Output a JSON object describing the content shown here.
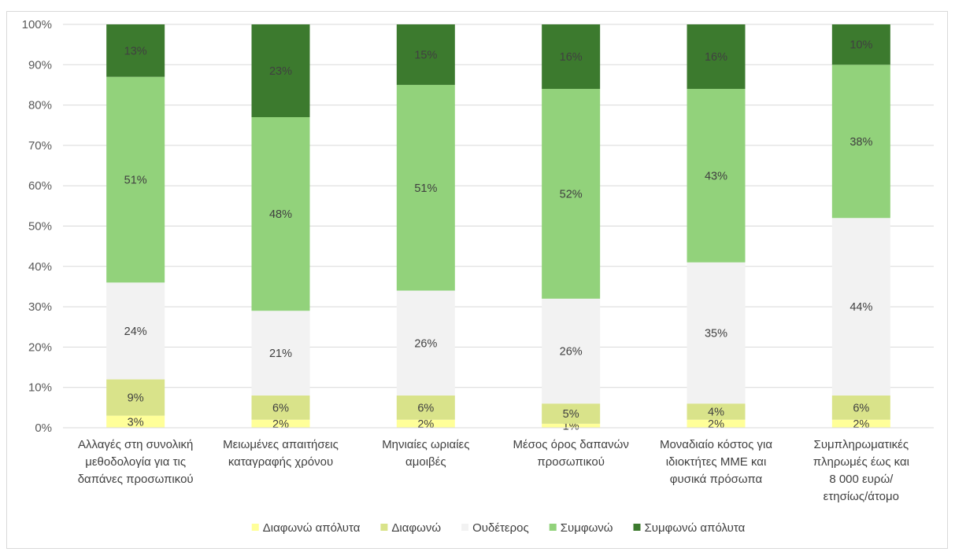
{
  "chart_data": {
    "type": "bar",
    "stacked": true,
    "percent_stacked": true,
    "title": "",
    "xlabel": "",
    "ylabel": "",
    "ylim": [
      0,
      100
    ],
    "yticks": [
      "0%",
      "10%",
      "20%",
      "30%",
      "40%",
      "50%",
      "60%",
      "70%",
      "80%",
      "90%",
      "100%"
    ],
    "grid": true,
    "legend_position": "bottom",
    "categories": [
      [
        "Αλλαγές στη συνολική",
        "μεθοδολογία για τις",
        "δαπάνες προσωπικού"
      ],
      [
        "Μειωμένες απαιτήσεις",
        "καταγραφής χρόνου"
      ],
      [
        "Μηνιαίες ωριαίες",
        "αμοιβές"
      ],
      [
        "Μέσος όρος δαπανών",
        "προσωπικού"
      ],
      [
        "Μοναδιαίο κόστος για",
        "ιδιοκτήτες ΜΜΕ και",
        "φυσικά πρόσωπα"
      ],
      [
        "Συμπληρωματικές",
        "πληρωμές έως και",
        "8 000 ευρώ/",
        "ετησίως/άτομο"
      ]
    ],
    "series": [
      {
        "name": "Διαφωνώ απόλυτα",
        "color": "#ffff99",
        "values": [
          3,
          2,
          2,
          1,
          2,
          2
        ],
        "labels": [
          "3%",
          "2%",
          "2%",
          "1%",
          "2%",
          "2%"
        ]
      },
      {
        "name": "Διαφωνώ",
        "color": "#d9e38a",
        "values": [
          9,
          6,
          6,
          5,
          4,
          6
        ],
        "labels": [
          "9%",
          "6%",
          "6%",
          "5%",
          "4%",
          "6%"
        ]
      },
      {
        "name": "Ουδέτερος",
        "color": "#f2f2f2",
        "values": [
          24,
          21,
          26,
          26,
          35,
          44
        ],
        "labels": [
          "24%",
          "21%",
          "26%",
          "26%",
          "35%",
          "44%"
        ]
      },
      {
        "name": "Συμφωνώ",
        "color": "#92d27b",
        "values": [
          51,
          48,
          51,
          52,
          43,
          38
        ],
        "labels": [
          "51%",
          "48%",
          "51%",
          "52%",
          "43%",
          "38%"
        ]
      },
      {
        "name": "Συμφωνώ απόλυτα",
        "color": "#3c7a2e",
        "values": [
          13,
          23,
          15,
          16,
          16,
          10
        ],
        "labels": [
          "13%",
          "23%",
          "15%",
          "16%",
          "16%",
          "10%"
        ]
      }
    ]
  }
}
